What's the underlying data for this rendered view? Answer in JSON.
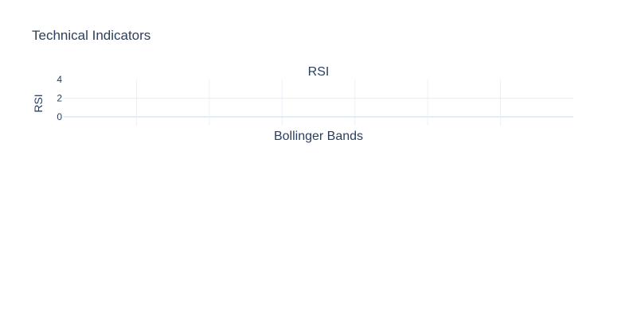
{
  "title": "Technical Indicators",
  "chart_data": {
    "type": "line",
    "subplots": [
      {
        "title": "RSI",
        "ylabel": "RSI",
        "xlabel": "",
        "ylim": [
          0,
          4
        ],
        "yticks": [
          0,
          2,
          4
        ],
        "x_gridlines": 7,
        "series": [],
        "grid": true
      },
      {
        "title": "Bollinger Bands",
        "series": []
      }
    ]
  },
  "colors": {
    "text": "#2a3f5f",
    "grid": "#ebf0f8",
    "zeroline": "#e5ebf7",
    "background": "#ffffff"
  }
}
